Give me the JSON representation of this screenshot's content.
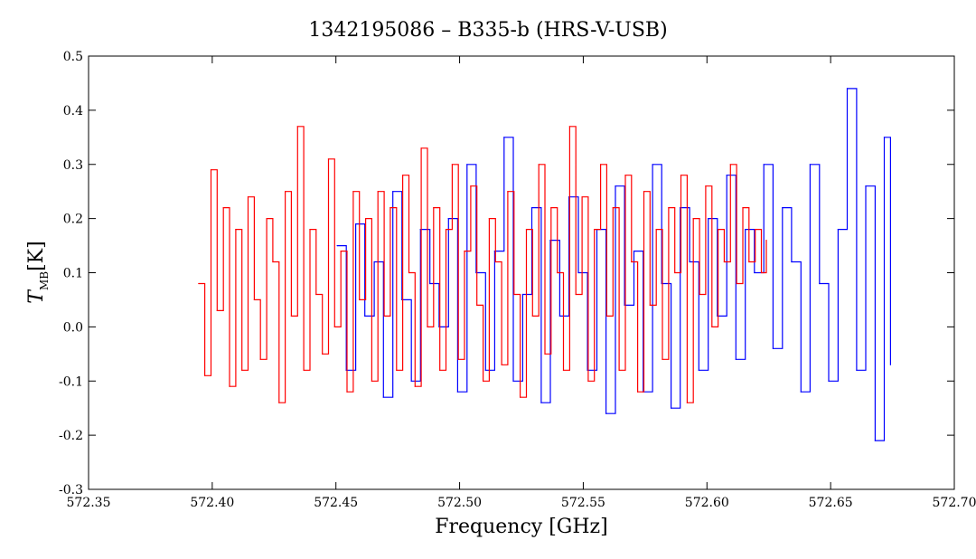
{
  "chart_data": {
    "type": "line",
    "title": "1342195086 – B335-b (HRS-V-USB)",
    "xlabel": "Frequency [GHz]",
    "ylabel_main": "T",
    "ylabel_sub": "MB",
    "ylabel_unit": "[K]",
    "xlim": [
      572.35,
      572.7
    ],
    "ylim": [
      -0.3,
      0.5
    ],
    "xticks": [
      572.35,
      572.4,
      572.45,
      572.5,
      572.55,
      572.6,
      572.65,
      572.7
    ],
    "xtick_labels": [
      "572.35",
      "572.40",
      "572.45",
      "572.50",
      "572.55",
      "572.60",
      "572.65",
      "572.70"
    ],
    "yticks": [
      -0.3,
      -0.2,
      -0.1,
      0.0,
      0.1,
      0.2,
      0.3,
      0.4,
      0.5
    ],
    "ytick_labels": [
      "-0.3",
      "-0.2",
      "-0.1",
      "0.0",
      "0.1",
      "0.2",
      "0.3",
      "0.4",
      "0.5"
    ],
    "grid": false,
    "legend": "none",
    "series": [
      {
        "color": "#0000ff",
        "x": [
          572.4505,
          572.4542,
          572.458,
          572.4617,
          572.4655,
          572.4692,
          572.473,
          572.4767,
          572.4805,
          572.4842,
          572.488,
          572.4917,
          572.4955,
          572.4992,
          572.503,
          572.5067,
          572.5105,
          572.5142,
          572.518,
          572.5217,
          572.5255,
          572.5292,
          572.533,
          572.5367,
          572.5405,
          572.5442,
          572.548,
          572.5517,
          572.5555,
          572.5592,
          572.563,
          572.5667,
          572.5705,
          572.5742,
          572.578,
          572.5817,
          572.5855,
          572.5892,
          572.593,
          572.5967,
          572.6005,
          572.6042,
          572.608,
          572.6117,
          572.6155,
          572.6192,
          572.623,
          572.6267,
          572.6305,
          572.6342,
          572.638,
          572.6417,
          572.6455,
          572.6492,
          572.653,
          572.6567,
          572.6605,
          572.6642,
          572.668,
          572.6717,
          572.6742
        ],
        "y": [
          0.15,
          -0.08,
          0.19,
          0.02,
          0.12,
          -0.13,
          0.25,
          0.05,
          -0.1,
          0.18,
          0.08,
          0.0,
          0.2,
          -0.12,
          0.3,
          0.1,
          -0.08,
          0.14,
          0.35,
          -0.1,
          0.06,
          0.22,
          -0.14,
          0.16,
          0.02,
          0.24,
          0.1,
          -0.08,
          0.18,
          -0.16,
          0.26,
          0.04,
          0.14,
          -0.12,
          0.3,
          0.08,
          -0.15,
          0.22,
          0.12,
          -0.08,
          0.2,
          0.02,
          0.28,
          -0.06,
          0.18,
          0.1,
          0.3,
          -0.04,
          0.22,
          0.12,
          -0.12,
          0.3,
          0.08,
          -0.1,
          0.18,
          0.44,
          -0.08,
          0.26,
          -0.21,
          0.35,
          -0.07
        ]
      },
      {
        "color": "#ff0000",
        "x": [
          572.3945,
          572.397,
          572.3995,
          572.402,
          572.4045,
          572.407,
          572.4095,
          572.412,
          572.4145,
          572.417,
          572.4195,
          572.422,
          572.4245,
          572.427,
          572.4295,
          572.432,
          572.4345,
          572.437,
          572.4395,
          572.442,
          572.4445,
          572.447,
          572.4495,
          572.452,
          572.4545,
          572.457,
          572.4595,
          572.462,
          572.4645,
          572.467,
          572.4695,
          572.472,
          572.4745,
          572.477,
          572.4795,
          572.482,
          572.4845,
          572.487,
          572.4895,
          572.492,
          572.4945,
          572.497,
          572.4995,
          572.502,
          572.5045,
          572.507,
          572.5095,
          572.512,
          572.5145,
          572.517,
          572.5195,
          572.522,
          572.5245,
          572.527,
          572.5295,
          572.532,
          572.5345,
          572.537,
          572.5395,
          572.542,
          572.5445,
          572.547,
          572.5495,
          572.552,
          572.5545,
          572.557,
          572.5595,
          572.562,
          572.5645,
          572.567,
          572.5695,
          572.572,
          572.5745,
          572.577,
          572.5795,
          572.582,
          572.5845,
          572.587,
          572.5895,
          572.592,
          572.5945,
          572.597,
          572.5995,
          572.602,
          572.6045,
          572.607,
          572.6095,
          572.612,
          572.6145,
          572.617,
          572.6195,
          572.622,
          572.624
        ],
        "y": [
          0.08,
          -0.09,
          0.29,
          0.03,
          0.22,
          -0.11,
          0.18,
          -0.08,
          0.24,
          0.05,
          -0.06,
          0.2,
          0.12,
          -0.14,
          0.25,
          0.02,
          0.37,
          -0.08,
          0.18,
          0.06,
          -0.05,
          0.31,
          0.0,
          0.14,
          -0.12,
          0.25,
          0.05,
          0.2,
          -0.1,
          0.25,
          0.02,
          0.22,
          -0.08,
          0.28,
          0.1,
          -0.11,
          0.33,
          0.0,
          0.22,
          -0.08,
          0.18,
          0.3,
          -0.06,
          0.14,
          0.26,
          0.04,
          -0.1,
          0.2,
          0.12,
          -0.07,
          0.25,
          0.06,
          -0.13,
          0.18,
          0.02,
          0.3,
          -0.05,
          0.22,
          0.1,
          -0.08,
          0.37,
          0.06,
          0.24,
          -0.1,
          0.18,
          0.3,
          0.02,
          0.22,
          -0.08,
          0.28,
          0.12,
          -0.12,
          0.25,
          0.04,
          0.18,
          -0.06,
          0.22,
          0.1,
          0.28,
          -0.14,
          0.2,
          0.06,
          0.26,
          0.0,
          0.18,
          0.12,
          0.3,
          0.08,
          0.22,
          0.12,
          0.18,
          0.1,
          0.16
        ]
      }
    ]
  }
}
